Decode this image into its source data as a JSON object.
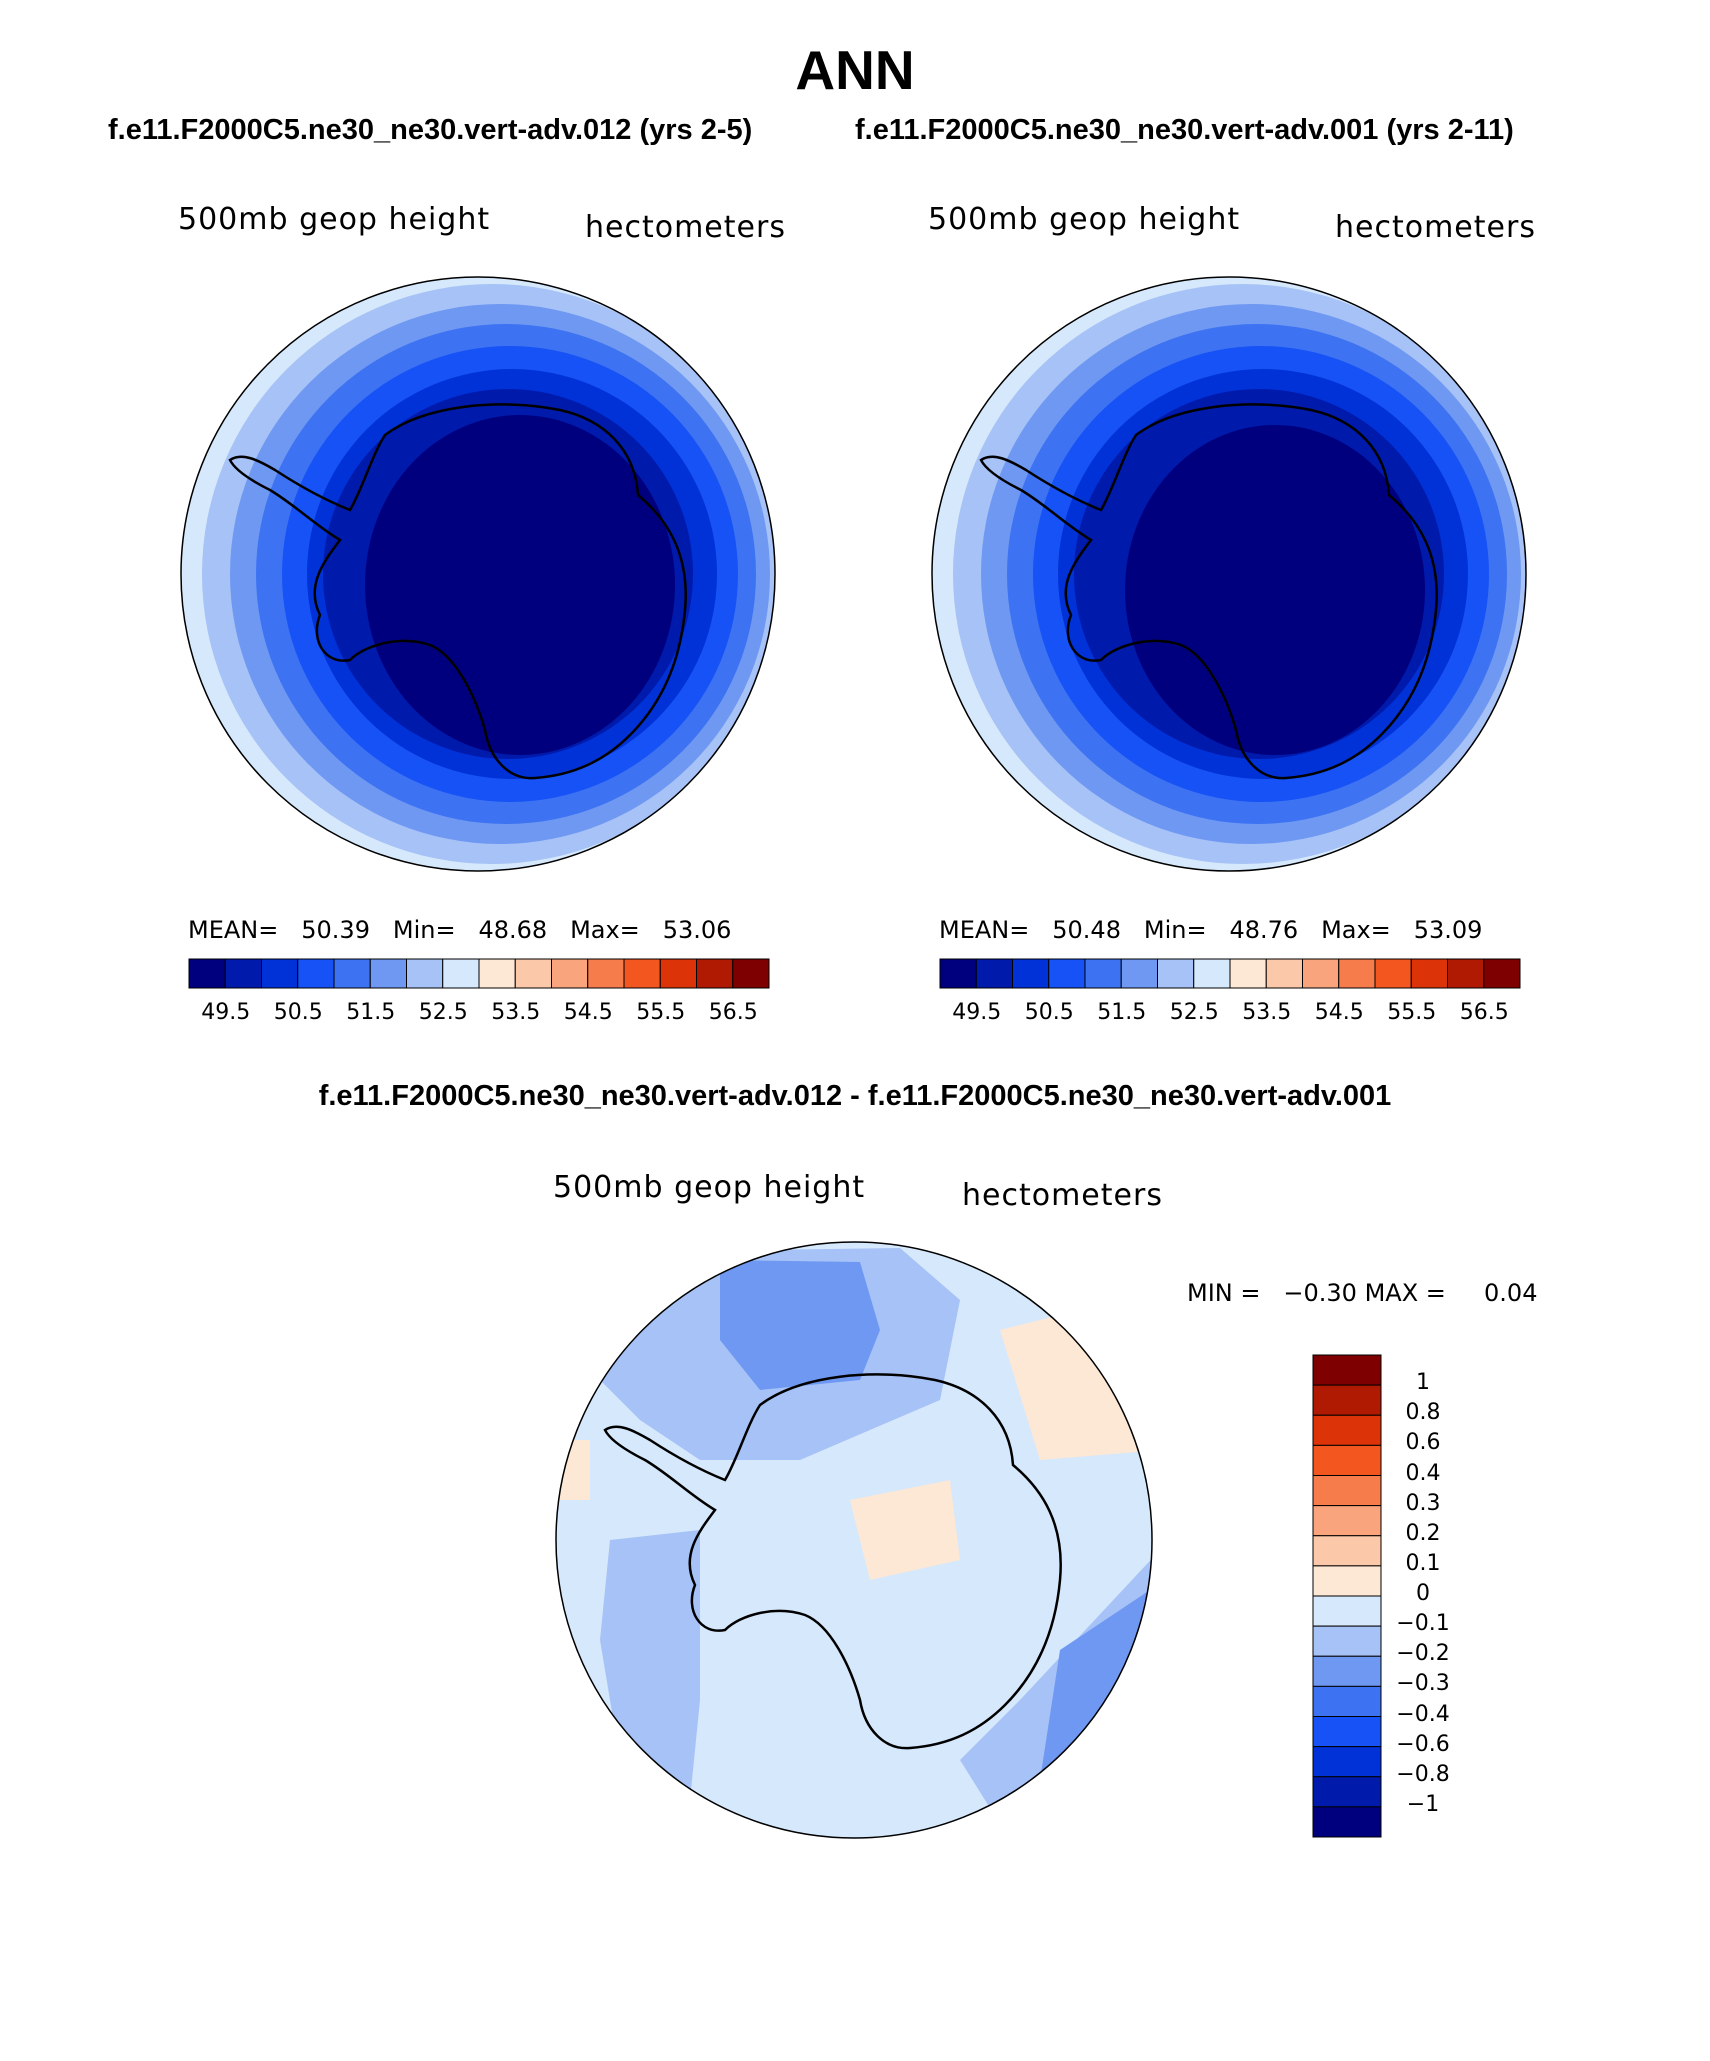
{
  "title": "ANN",
  "panels": [
    {
      "case": "f.e11.F2000C5.ne30_ne30.vert-adv.012 (yrs 2-5)",
      "variable": "500mb geop height",
      "units": "hectometers",
      "stats": {
        "mean_label": "MEAN=",
        "mean": "50.39",
        "min_label": "Min=",
        "min": "48.68",
        "max_label": "Max=",
        "max": "53.06"
      },
      "colorbar_ticks": [
        "49.5",
        "50.5",
        "51.5",
        "52.5",
        "53.5",
        "54.5",
        "55.5",
        "56.5"
      ]
    },
    {
      "case": "f.e11.F2000C5.ne30_ne30.vert-adv.001 (yrs 2-11)",
      "variable": "500mb geop height",
      "units": "hectometers",
      "stats": {
        "mean_label": "MEAN=",
        "mean": "50.48",
        "min_label": "Min=",
        "min": "48.76",
        "max_label": "Max=",
        "max": "53.09"
      },
      "colorbar_ticks": [
        "49.5",
        "50.5",
        "51.5",
        "52.5",
        "53.5",
        "54.5",
        "55.5",
        "56.5"
      ]
    }
  ],
  "difference": {
    "title": "f.e11.F2000C5.ne30_ne30.vert-adv.012 - f.e11.F2000C5.ne30_ne30.vert-adv.001",
    "variable": "500mb geop height",
    "units": "hectometers",
    "stats": {
      "min_label": "MIN =",
      "min": "−0.30",
      "max_label": "MAX =",
      "max": "0.04"
    },
    "colorbar_ticks": [
      "1",
      "0.8",
      "0.6",
      "0.4",
      "0.3",
      "0.2",
      "0.1",
      "0",
      "−0.1",
      "−0.2",
      "−0.3",
      "−0.4",
      "−0.6",
      "−0.8",
      "−1"
    ]
  },
  "colors": {
    "abs_scale": [
      "#00007f",
      "#001aac",
      "#0032d8",
      "#1652f5",
      "#3d72f2",
      "#6f98f2",
      "#a6c2f6",
      "#d6e8fb",
      "#fde7d5",
      "#fcc8aa",
      "#f9a47c",
      "#f77c4c",
      "#f3561f",
      "#dc3408",
      "#b01a02",
      "#7f0000"
    ],
    "diff_scale": [
      "#7f0000",
      "#b01a02",
      "#dc3408",
      "#f3561f",
      "#f77c4c",
      "#f9a47c",
      "#fcc8aa",
      "#fde7d5",
      "#d6e8fb",
      "#a6c2f6",
      "#6f98f2",
      "#3d72f2",
      "#1652f5",
      "#0032d8",
      "#001aac",
      "#00007f"
    ]
  }
}
